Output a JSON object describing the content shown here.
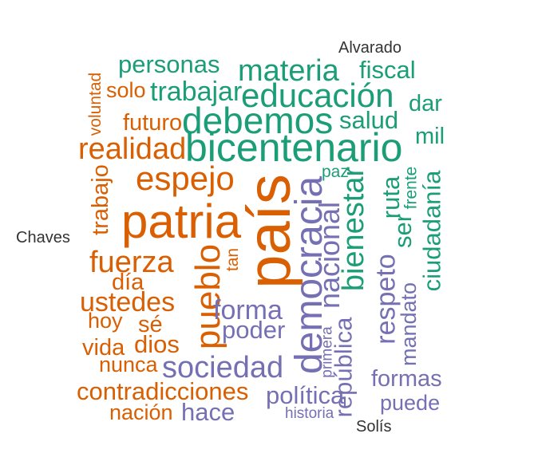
{
  "colors": {
    "orange": "#d95f02",
    "green": "#1b9e77",
    "purple": "#7570b3",
    "label": "#333333"
  },
  "labels": {
    "top": "Alvarado",
    "left": "Chaves",
    "bottom": "Solís"
  },
  "words": {
    "pais": "país",
    "patria": "patria",
    "bicentenario": "bicentenario",
    "democracia": "democracia",
    "debemos": "debemos",
    "educacion": "educación",
    "materia": "materia",
    "espejo": "espejo",
    "realidad": "realidad",
    "pueblo": "pueblo",
    "sociedad": "sociedad",
    "nacional": "nacional",
    "bienestar": "bienestar",
    "fuerza": "fuerza",
    "republica": "república",
    "forma": "forma",
    "ciudadania": "ciudadanía",
    "ustedes": "ustedes",
    "personas": "personas",
    "trabajar": "trabajar",
    "salud": "salud",
    "fiscal": "fiscal",
    "contradicciones": "contradicciones",
    "politica": "política",
    "respeto": "respeto",
    "ruta": "ruta",
    "ser": "ser",
    "poder": "poder",
    "hace": "hace",
    "nacion": "nación",
    "formas": "formas",
    "mandato": "mandato",
    "dar": "dar",
    "futuro": "futuro",
    "trabajo": "trabajo",
    "dios": "dios",
    "vida": "vida",
    "dia": "día",
    "hoy": "hoy",
    "se": "sé",
    "nunca": "nunca",
    "solo": "solo",
    "voluntad": "voluntad",
    "mil": "mil",
    "frente": "frente",
    "paz": "paz",
    "tan": "tan",
    "primera": "primera",
    "historia": "historia",
    "puede": "puede"
  }
}
